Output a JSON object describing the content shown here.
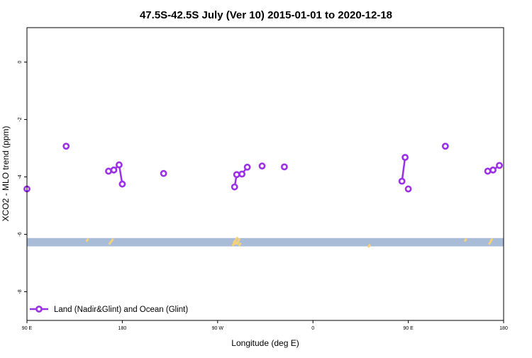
{
  "chart_data": {
    "type": "line",
    "title": "47.5S-42.5S July (Ver 10)   2015-01-01 to 2020-12-18",
    "xlabel": "Longitude (deg E)",
    "ylabel": "XCO2 - MLO trend (ppm)",
    "xlim": [
      90,
      540
    ],
    "ylim": [
      -9.0,
      1.2
    ],
    "x_ticks": [
      {
        "value": 90,
        "label": "90 E"
      },
      {
        "value": 180,
        "label": "180"
      },
      {
        "value": 270,
        "label": "90 W"
      },
      {
        "value": 360,
        "label": "0"
      },
      {
        "value": 450,
        "label": "90 E"
      },
      {
        "value": 540,
        "label": "180"
      }
    ],
    "y_ticks": [
      {
        "value": 0,
        "label": "0"
      },
      {
        "value": -2,
        "label": "-2"
      },
      {
        "value": -4,
        "label": "-4"
      },
      {
        "value": -6,
        "label": "-6"
      },
      {
        "value": -8,
        "label": "-8"
      }
    ],
    "legend": {
      "position": "bottom-left",
      "entries": [
        "Land (Nadir&Glint) and Ocean (Glint)"
      ]
    },
    "land_band": {
      "y_range": [
        -6.42,
        -6.13
      ],
      "color": "#a8bcd8"
    },
    "land_patches": {
      "color": "#f5d27a",
      "points": [
        [
          147,
          -6.2
        ],
        [
          168.5,
          -6.3
        ],
        [
          170.5,
          -6.2
        ],
        [
          285,
          -6.35
        ],
        [
          286,
          -6.25
        ],
        [
          287,
          -6.3
        ],
        [
          288,
          -6.15
        ],
        [
          289,
          -6.3
        ],
        [
          290,
          -6.2
        ],
        [
          291,
          -6.35
        ],
        [
          413,
          -6.4
        ],
        [
          504,
          -6.2
        ],
        [
          527,
          -6.3
        ],
        [
          528.5,
          -6.2
        ]
      ]
    },
    "series": [
      {
        "name": "Land (Nadir&Glint) and Ocean (Glint)",
        "color": "#9b30e8",
        "segments": [
          [
            [
              90,
              -4.42
            ]
          ],
          [
            [
              127,
              -2.93
            ]
          ],
          [
            [
              167,
              -3.8
            ],
            [
              172,
              -3.76
            ],
            [
              177,
              -3.58
            ],
            [
              180,
              -4.25
            ]
          ],
          [
            [
              219,
              -3.88
            ]
          ],
          [
            [
              286,
              -4.35
            ],
            [
              288,
              -3.92
            ],
            [
              293,
              -3.9
            ],
            [
              298,
              -3.66
            ]
          ],
          [
            [
              312,
              -3.62
            ]
          ],
          [
            [
              333,
              -3.65
            ]
          ],
          [
            [
              444,
              -4.15
            ],
            [
              447,
              -3.32
            ]
          ],
          [
            [
              450,
              -4.42
            ]
          ],
          [
            [
              485,
              -2.93
            ]
          ],
          [
            [
              525,
              -3.8
            ],
            [
              530,
              -3.76
            ],
            [
              536,
              -3.6
            ]
          ]
        ]
      }
    ]
  }
}
